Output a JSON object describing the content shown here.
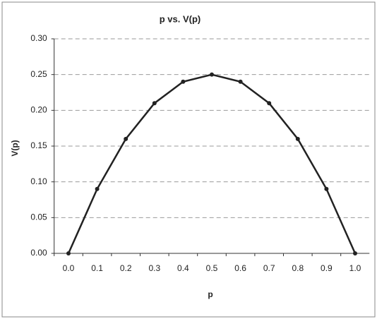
{
  "chart_data": {
    "type": "line",
    "title": "p vs. V(p)",
    "x_label": "p",
    "y_label": "V(p)",
    "categories": [
      "0.0",
      "0.1",
      "0.2",
      "0.3",
      "0.4",
      "0.5",
      "0.6",
      "0.7",
      "0.8",
      "0.9",
      "1.0"
    ],
    "series": [
      {
        "name": "V(p)",
        "color": "#222222",
        "values": [
          0,
          0.09,
          0.16,
          0.21,
          0.24,
          0.25,
          0.24,
          0.21,
          0.16,
          0.09,
          0
        ]
      }
    ],
    "ylim": [
      0,
      0.3
    ],
    "yticks": [
      {
        "value": 0,
        "label": "0.00"
      },
      {
        "value": 0.05,
        "label": "0.05"
      },
      {
        "value": 0.1,
        "label": "0.10"
      },
      {
        "value": 0.15,
        "label": "0.15"
      },
      {
        "value": 0.2,
        "label": "0.20"
      },
      {
        "value": 0.25,
        "label": "0.25"
      },
      {
        "value": 0.3,
        "label": "0.30"
      }
    ],
    "grid": true
  }
}
